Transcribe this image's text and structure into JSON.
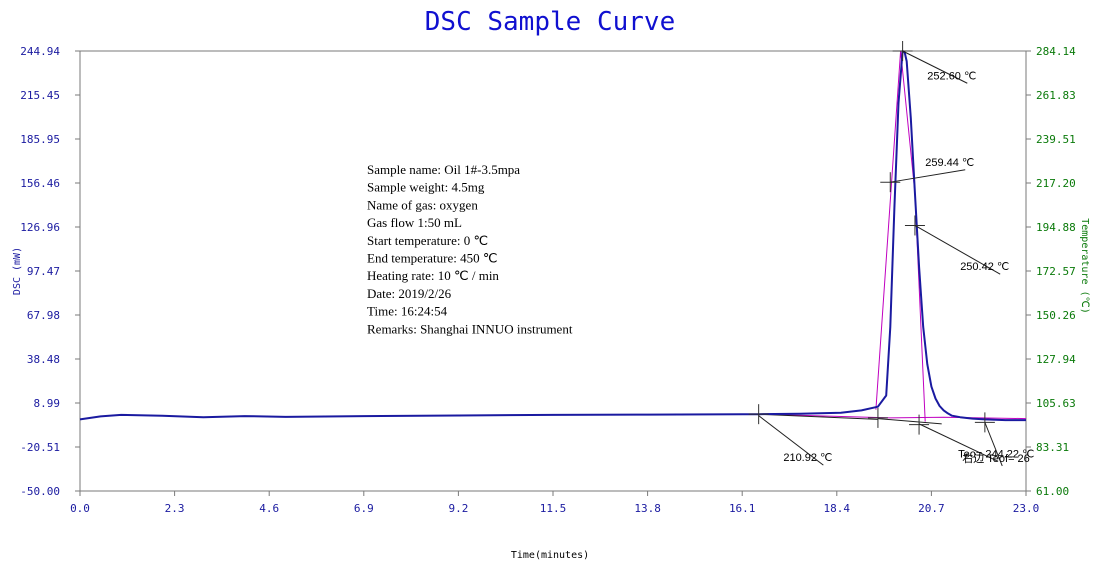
{
  "chart_data": {
    "type": "line",
    "title": "DSC Sample Curve",
    "xlabel": "Time(minutes)",
    "ylabel": "DSC (mW)",
    "y2label": "Temperature (℃)",
    "xlim": [
      0.0,
      23.0
    ],
    "ylim": [
      -50.0,
      244.94
    ],
    "y2lim": [
      61.0,
      284.14
    ],
    "x_ticks": [
      "0.0",
      "2.3",
      "4.6",
      "6.9",
      "9.2",
      "11.5",
      "13.8",
      "16.1",
      "18.4",
      "20.7",
      "23.0"
    ],
    "y_ticks": [
      "244.94",
      "215.45",
      "185.95",
      "156.46",
      "126.96",
      "97.47",
      "67.98",
      "38.48",
      "8.99",
      "-20.51",
      "-50.00"
    ],
    "y2_ticks": [
      "284.14",
      "261.83",
      "239.51",
      "217.20",
      "194.88",
      "172.57",
      "150.26",
      "127.94",
      "105.63",
      "83.31",
      "61.00"
    ],
    "colors": {
      "curve": "#1a1aa0",
      "fit": "#c000c0",
      "frame": "#7a7a7a",
      "right_axis": "#0a7a0a"
    },
    "series": [
      {
        "color": "#1a1aa0",
        "x": [
          0.0,
          0.5,
          1.0,
          2.0,
          3.0,
          4.0,
          5.0,
          6.9,
          9.2,
          11.5,
          13.8,
          16.1,
          16.5,
          17.5,
          18.5,
          19.0,
          19.4,
          19.6,
          19.7,
          19.8,
          19.9,
          20.0,
          20.05,
          20.1,
          20.2,
          20.3,
          20.4,
          20.5,
          20.6,
          20.7,
          20.8,
          20.9,
          21.0,
          21.1,
          21.2,
          21.4,
          21.7,
          22.0,
          22.5,
          23.0
        ],
        "y": [
          -2.0,
          0.0,
          1.0,
          0.5,
          -0.5,
          0.2,
          -0.3,
          0.2,
          0.6,
          1.0,
          1.2,
          1.5,
          1.5,
          1.8,
          2.5,
          4.0,
          6.5,
          14.0,
          60.0,
          140.0,
          210.0,
          244.94,
          244.0,
          238.0,
          200.0,
          150.0,
          100.0,
          60.0,
          35.0,
          20.0,
          12.0,
          7.0,
          4.0,
          2.0,
          0.5,
          -0.5,
          -1.5,
          -2.0,
          -2.5,
          -2.5
        ]
      }
    ],
    "fit_lines": [
      {
        "x": [
          16.5,
          19.7,
          21.0,
          23.0
        ],
        "y": [
          1.5,
          -1.0,
          -0.5,
          -1.5
        ]
      },
      {
        "x": [
          19.35,
          19.95,
          20.3,
          20.55
        ],
        "y": [
          4.5,
          244.94,
          150.0,
          -3.5
        ]
      }
    ],
    "tangent_lines": [
      {
        "x": [
          16.5,
          19.4
        ],
        "y": [
          1.5,
          -2.0
        ]
      },
      {
        "x": [
          19.4,
          20.95
        ],
        "y": [
          -1.5,
          -5.0
        ]
      }
    ],
    "annotations": [
      {
        "text": "252.60 ℃",
        "at": [
          20.0,
          244.94
        ],
        "label": [
          20.6,
          226.0
        ]
      },
      {
        "text": "259.44 ℃",
        "at": [
          19.7,
          157.0
        ],
        "label": [
          20.55,
          168.0
        ]
      },
      {
        "text": "250.42 ℃",
        "at": [
          20.3,
          128.0
        ],
        "label": [
          21.4,
          98.0
        ]
      },
      {
        "text": "210.92 ℃",
        "at": [
          16.5,
          0.5
        ],
        "label": [
          17.1,
          -30.0
        ]
      },
      {
        "text": "Teo= 244.22 ℃",
        "at": [
          20.4,
          -5.0
        ],
        "label": [
          21.35,
          -27.5
        ]
      },
      {
        "text": "右边 Teof= 26",
        "at": [
          22.0,
          -4.0
        ],
        "label": [
          21.45,
          -30.5
        ]
      }
    ],
    "markers": [
      [
        16.5,
        1.5
      ],
      [
        19.4,
        -1.0
      ],
      [
        20.4,
        -5.5
      ],
      [
        22.0,
        -4.0
      ],
      [
        20.0,
        244.94
      ],
      [
        19.7,
        157.0
      ],
      [
        20.3,
        128.0
      ]
    ]
  },
  "info_box": {
    "lines": [
      "Sample name: Oil  1#-3.5mpa",
      "Sample weight: 4.5mg",
      "Name of gas: oxygen",
      "Gas flow 1:50 mL",
      "Start temperature: 0 ℃",
      "End  temperature: 450 ℃",
      "Heating rate: 10 ℃ / min",
      "Date: 2019/2/26",
      "Time: 16:24:54",
      "Remarks: Shanghai INNUO instrument"
    ]
  }
}
